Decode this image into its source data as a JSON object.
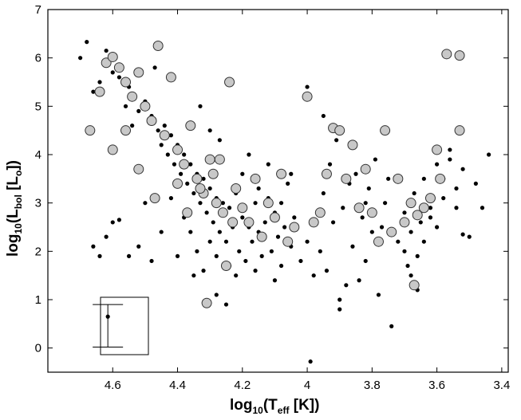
{
  "chart_data": {
    "type": "scatter",
    "xlabel": {
      "main": "log",
      "sub1": "10",
      "paren_open": "(T",
      "sub2": "eff",
      "rest": " [K])"
    },
    "ylabel": {
      "main": "log",
      "sub1": "10",
      "paren_open": "(L",
      "sub2": "bol",
      "mid": " [L",
      "sub3": "o",
      "rest": "])"
    },
    "xlim": [
      4.8,
      3.38
    ],
    "ylim": [
      -0.5,
      7
    ],
    "x_reversed": true,
    "xticks": [
      "4.6",
      "4.4",
      "4.2",
      "4",
      "3.8",
      "3.6",
      "3.4"
    ],
    "yticks": [
      "0",
      "1",
      "2",
      "3",
      "4",
      "5",
      "6",
      "7"
    ],
    "grid": false,
    "colors": {
      "small_points": "#000000",
      "large_points_fill": "#c8c8c8",
      "large_points_edge": "#333333"
    },
    "error_bar_example": {
      "x": 4.615,
      "center": 0.65,
      "upper": 0.9,
      "lower": 0.02
    },
    "series": [
      {
        "marker": "small-black-dot",
        "points": [
          [
            4.7,
            6.0
          ],
          [
            4.68,
            6.33
          ],
          [
            4.66,
            5.3
          ],
          [
            4.64,
            5.5
          ],
          [
            4.62,
            6.15
          ],
          [
            4.6,
            5.7
          ],
          [
            4.58,
            5.6
          ],
          [
            4.56,
            5.0
          ],
          [
            4.55,
            5.4
          ],
          [
            4.54,
            4.6
          ],
          [
            4.52,
            4.9
          ],
          [
            4.5,
            5.1
          ],
          [
            4.48,
            4.8
          ],
          [
            4.47,
            5.8
          ],
          [
            4.46,
            4.5
          ],
          [
            4.45,
            4.2
          ],
          [
            4.44,
            4.6
          ],
          [
            4.43,
            4.0
          ],
          [
            4.42,
            4.4
          ],
          [
            4.41,
            3.8
          ],
          [
            4.4,
            4.2
          ],
          [
            4.39,
            3.6
          ],
          [
            4.38,
            4.0
          ],
          [
            4.37,
            3.4
          ],
          [
            4.36,
            3.8
          ],
          [
            4.35,
            3.2
          ],
          [
            4.34,
            3.6
          ],
          [
            4.33,
            3.0
          ],
          [
            4.32,
            3.5
          ],
          [
            4.31,
            2.8
          ],
          [
            4.3,
            3.3
          ],
          [
            4.29,
            2.6
          ],
          [
            4.28,
            3.1
          ],
          [
            4.27,
            2.4
          ],
          [
            4.26,
            3.0
          ],
          [
            4.25,
            2.2
          ],
          [
            4.24,
            2.9
          ],
          [
            4.23,
            2.5
          ],
          [
            4.22,
            3.2
          ],
          [
            4.21,
            2.0
          ],
          [
            4.2,
            2.7
          ],
          [
            4.19,
            1.8
          ],
          [
            4.18,
            2.5
          ],
          [
            4.17,
            2.2
          ],
          [
            4.16,
            3.0
          ],
          [
            4.15,
            2.4
          ],
          [
            4.14,
            1.9
          ],
          [
            4.13,
            2.6
          ],
          [
            4.12,
            3.1
          ],
          [
            4.11,
            2.0
          ],
          [
            4.1,
            2.8
          ],
          [
            4.09,
            2.3
          ],
          [
            4.08,
            1.7
          ],
          [
            4.07,
            2.5
          ],
          [
            4.06,
            3.4
          ],
          [
            4.05,
            2.1
          ],
          [
            4.04,
            2.7
          ],
          [
            4.02,
            1.8
          ],
          [
            4.0,
            2.2
          ],
          [
            3.98,
            1.5
          ],
          [
            3.96,
            2.0
          ],
          [
            3.94,
            1.6
          ],
          [
            3.92,
            2.6
          ],
          [
            3.9,
            1.0
          ],
          [
            3.88,
            1.3
          ],
          [
            3.86,
            2.1
          ],
          [
            3.84,
            1.4
          ],
          [
            3.82,
            1.8
          ],
          [
            3.8,
            2.4
          ],
          [
            3.78,
            1.1
          ],
          [
            3.76,
            3.0
          ],
          [
            3.74,
            0.45
          ],
          [
            3.72,
            2.2
          ],
          [
            3.7,
            2.8
          ],
          [
            3.69,
            1.7
          ],
          [
            3.68,
            2.4
          ],
          [
            3.67,
            3.2
          ],
          [
            3.66,
            1.9
          ],
          [
            3.65,
            2.6
          ],
          [
            3.64,
            3.5
          ],
          [
            3.62,
            2.9
          ],
          [
            3.6,
            3.8
          ],
          [
            3.58,
            3.1
          ],
          [
            3.56,
            3.9
          ],
          [
            3.54,
            3.3
          ],
          [
            3.52,
            3.7
          ],
          [
            3.5,
            2.3
          ],
          [
            3.48,
            3.4
          ],
          [
            3.46,
            2.9
          ],
          [
            3.44,
            4.0
          ],
          [
            4.62,
            2.3
          ],
          [
            4.58,
            2.65
          ],
          [
            4.55,
            1.9
          ],
          [
            4.45,
            2.4
          ],
          [
            4.5,
            3.0
          ],
          [
            4.35,
            1.5
          ],
          [
            4.28,
            1.1
          ],
          [
            4.25,
            0.9
          ],
          [
            3.99,
            -0.28
          ],
          [
            3.95,
            4.8
          ],
          [
            4.0,
            5.4
          ],
          [
            3.9,
            0.8
          ],
          [
            3.85,
            3.6
          ],
          [
            3.82,
            3.0
          ],
          [
            4.3,
            4.5
          ],
          [
            4.33,
            5.0
          ],
          [
            4.27,
            4.3
          ],
          [
            4.2,
            3.6
          ],
          [
            4.18,
            4.0
          ],
          [
            4.15,
            3.3
          ],
          [
            4.12,
            3.8
          ],
          [
            4.08,
            3.0
          ],
          [
            4.05,
            3.6
          ],
          [
            4.42,
            3.1
          ],
          [
            4.38,
            2.7
          ],
          [
            4.36,
            2.4
          ],
          [
            4.34,
            2.0
          ],
          [
            4.32,
            1.6
          ],
          [
            4.28,
            1.9
          ],
          [
            4.24,
            1.7
          ],
          [
            3.7,
            2.0
          ],
          [
            3.68,
            1.5
          ],
          [
            3.66,
            1.2
          ],
          [
            3.64,
            2.2
          ],
          [
            3.62,
            2.7
          ],
          [
            3.6,
            2.5
          ],
          [
            3.58,
            3.5
          ],
          [
            3.56,
            4.1
          ],
          [
            3.54,
            2.9
          ],
          [
            3.52,
            2.35
          ],
          [
            3.95,
            3.2
          ],
          [
            3.93,
            3.8
          ],
          [
            3.91,
            4.3
          ],
          [
            3.89,
            2.9
          ],
          [
            3.87,
            3.4
          ],
          [
            3.83,
            2.7
          ],
          [
            3.81,
            3.3
          ],
          [
            3.79,
            3.9
          ],
          [
            3.77,
            2.5
          ],
          [
            3.75,
            3.5
          ],
          [
            4.66,
            2.1
          ],
          [
            4.64,
            1.9
          ],
          [
            4.6,
            2.6
          ],
          [
            4.52,
            2.1
          ],
          [
            4.48,
            1.8
          ],
          [
            4.4,
            1.9
          ],
          [
            4.3,
            2.2
          ],
          [
            4.22,
            1.5
          ],
          [
            4.16,
            1.6
          ],
          [
            4.1,
            1.4
          ]
        ]
      },
      {
        "marker": "large-gray-circle",
        "points": [
          [
            4.67,
            4.5
          ],
          [
            4.64,
            5.3
          ],
          [
            4.62,
            5.9
          ],
          [
            4.6,
            6.02
          ],
          [
            4.58,
            5.8
          ],
          [
            4.56,
            5.5
          ],
          [
            4.54,
            5.2
          ],
          [
            4.52,
            5.7
          ],
          [
            4.5,
            5.0
          ],
          [
            4.48,
            4.7
          ],
          [
            4.46,
            6.25
          ],
          [
            4.44,
            4.4
          ],
          [
            4.42,
            5.6
          ],
          [
            4.4,
            4.1
          ],
          [
            4.38,
            3.8
          ],
          [
            4.36,
            4.6
          ],
          [
            4.34,
            3.5
          ],
          [
            4.32,
            3.2
          ],
          [
            4.3,
            3.9
          ],
          [
            4.28,
            3.0
          ],
          [
            4.26,
            2.8
          ],
          [
            4.24,
            5.5
          ],
          [
            4.22,
            3.3
          ],
          [
            4.2,
            2.9
          ],
          [
            4.18,
            2.6
          ],
          [
            4.16,
            3.5
          ],
          [
            4.14,
            2.3
          ],
          [
            4.12,
            3.0
          ],
          [
            4.1,
            2.7
          ],
          [
            4.08,
            3.6
          ],
          [
            4.06,
            2.2
          ],
          [
            4.04,
            2.5
          ],
          [
            4.0,
            5.2
          ],
          [
            3.98,
            2.6
          ],
          [
            3.96,
            2.8
          ],
          [
            3.94,
            3.6
          ],
          [
            3.92,
            4.55
          ],
          [
            3.9,
            4.5
          ],
          [
            3.88,
            3.5
          ],
          [
            3.86,
            4.2
          ],
          [
            3.84,
            2.9
          ],
          [
            3.82,
            3.7
          ],
          [
            3.8,
            2.8
          ],
          [
            3.78,
            2.2
          ],
          [
            3.76,
            4.5
          ],
          [
            3.74,
            2.4
          ],
          [
            3.72,
            3.5
          ],
          [
            3.7,
            2.6
          ],
          [
            3.68,
            3.0
          ],
          [
            3.67,
            1.3
          ],
          [
            3.66,
            2.75
          ],
          [
            3.64,
            2.9
          ],
          [
            3.62,
            3.1
          ],
          [
            3.6,
            4.1
          ],
          [
            3.59,
            3.5
          ],
          [
            3.57,
            6.08
          ],
          [
            3.53,
            6.05
          ],
          [
            3.53,
            4.5
          ],
          [
            4.31,
            0.93
          ],
          [
            4.25,
            1.7
          ],
          [
            4.6,
            4.1
          ],
          [
            4.56,
            4.5
          ],
          [
            4.52,
            3.7
          ],
          [
            4.47,
            3.1
          ],
          [
            4.4,
            3.4
          ],
          [
            4.37,
            2.8
          ],
          [
            4.33,
            3.3
          ],
          [
            4.29,
            3.6
          ],
          [
            4.27,
            3.9
          ],
          [
            4.23,
            2.6
          ]
        ]
      }
    ]
  }
}
